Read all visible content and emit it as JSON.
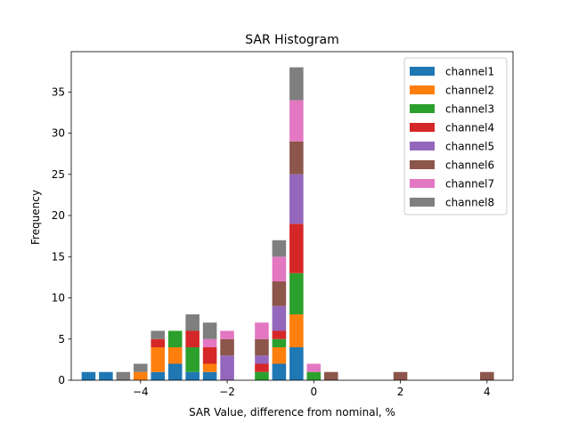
{
  "chart_data": {
    "type": "bar",
    "stacked": true,
    "title": "SAR Histogram",
    "xlabel": "SAR Value, difference from nominal, %",
    "ylabel": "Frequency",
    "xlim": [
      -5.6,
      4.6
    ],
    "ylim": [
      0,
      39.9
    ],
    "xticks": [
      -4,
      -2,
      0,
      2,
      4
    ],
    "yticks": [
      0,
      5,
      10,
      15,
      20,
      25,
      30,
      35
    ],
    "grid": false,
    "legend": "top-right",
    "bin_width": 0.4,
    "x": [
      -5.2,
      -4.8,
      -4.4,
      -4.0,
      -3.6,
      -3.2,
      -2.8,
      -2.4,
      -2.0,
      -1.6,
      -1.2,
      -0.8,
      -0.4,
      0.0,
      0.4,
      2.0,
      4.0
    ],
    "series": [
      {
        "name": "channel1",
        "color": "#1f77b4",
        "values": [
          1,
          1,
          0,
          0,
          1,
          2,
          1,
          1,
          0,
          0,
          0,
          2,
          4,
          0,
          0,
          0,
          0
        ]
      },
      {
        "name": "channel2",
        "color": "#ff7f0e",
        "values": [
          0,
          0,
          0,
          1,
          3,
          2,
          0,
          1,
          0,
          0,
          0,
          2,
          4,
          0,
          0,
          0,
          0
        ]
      },
      {
        "name": "channel3",
        "color": "#2ca02c",
        "values": [
          0,
          0,
          0,
          0,
          0,
          2,
          3,
          0,
          0,
          0,
          1,
          1,
          5,
          1,
          0,
          0,
          0
        ]
      },
      {
        "name": "channel4",
        "color": "#d62728",
        "values": [
          0,
          0,
          0,
          0,
          1,
          0,
          2,
          2,
          0,
          0,
          1,
          1,
          6,
          0,
          0,
          0,
          0
        ]
      },
      {
        "name": "channel5",
        "color": "#9467bd",
        "values": [
          0,
          0,
          0,
          0,
          0,
          0,
          0,
          0,
          3,
          0,
          1,
          3,
          6,
          0,
          0,
          0,
          0
        ]
      },
      {
        "name": "channel6",
        "color": "#8c564b",
        "values": [
          0,
          0,
          0,
          0,
          0,
          0,
          0,
          0,
          2,
          0,
          2,
          3,
          4,
          0,
          1,
          1,
          1
        ]
      },
      {
        "name": "channel7",
        "color": "#e377c2",
        "values": [
          0,
          0,
          0,
          0,
          0,
          0,
          0,
          1,
          1,
          0,
          2,
          3,
          5,
          1,
          0,
          0,
          0
        ]
      },
      {
        "name": "channel8",
        "color": "#7f7f7f",
        "values": [
          0,
          0,
          1,
          1,
          1,
          0,
          2,
          2,
          0,
          0,
          0,
          2,
          4,
          0,
          0,
          0,
          0
        ]
      }
    ]
  }
}
